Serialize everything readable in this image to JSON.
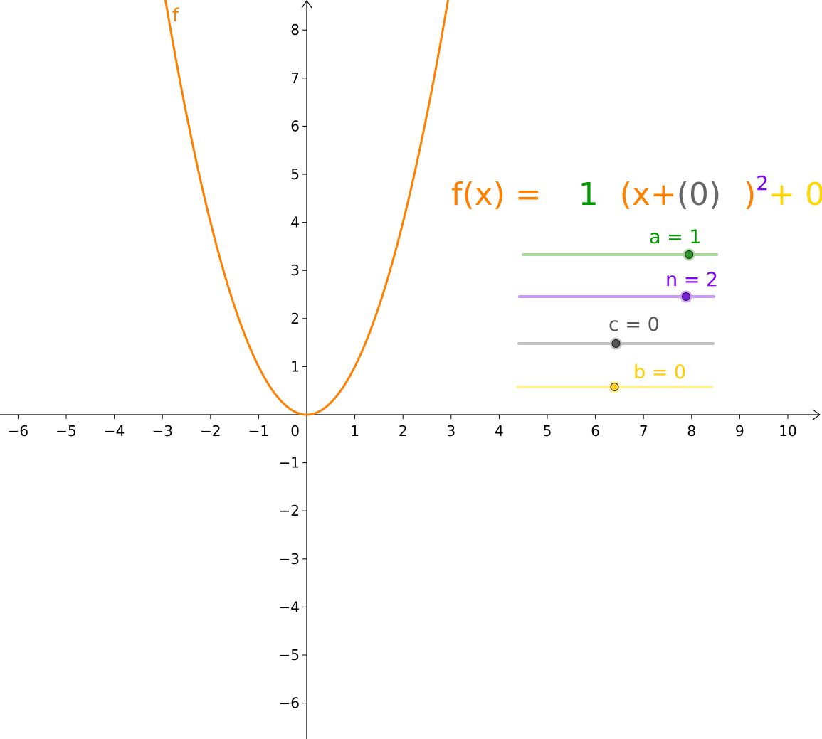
{
  "graph": {
    "x_ticks": [
      "−6",
      "−5",
      "−4",
      "−3",
      "−2",
      "−1",
      "1",
      "2",
      "3",
      "4",
      "5",
      "6",
      "7",
      "8",
      "9",
      "10"
    ],
    "y_ticks_pos": [
      "1",
      "2",
      "3",
      "4",
      "5",
      "6",
      "7",
      "8"
    ],
    "y_ticks_neg": [
      "−1",
      "−2",
      "−3",
      "−4",
      "−5",
      "−6"
    ],
    "origin_label": "0",
    "x_range": [
      -6.4,
      10.6
    ],
    "y_range": [
      -6.7,
      8.6
    ],
    "curve": {
      "name": "f",
      "label": "f",
      "expression": "a(x+c)^n+b",
      "color": "#ff8000"
    }
  },
  "formula": {
    "lhs": "f(x) =",
    "a_value": "1",
    "open_paren": "(",
    "x_plus": "x+",
    "c_part": "(0)",
    "close_paren": ")",
    "exponent": "2",
    "plus_b": "+ 0",
    "colors": {
      "f": "#ff8000",
      "a": "#009900",
      "c": "#666666",
      "n": "#8000ff",
      "b": "#ffd700"
    }
  },
  "sliders": [
    {
      "id": "a",
      "label": "a = 1",
      "value": 1,
      "min": -5,
      "max": 2,
      "color": "#009900",
      "track": "#a8d898",
      "knob": "#2e9a2e"
    },
    {
      "id": "n",
      "label": "n = 2",
      "value": 2,
      "min": -10,
      "max": 4,
      "color": "#8000ff",
      "track": "#cc99ff",
      "knob": "#7a1fe0"
    },
    {
      "id": "c",
      "label": "c = 0",
      "value": 0,
      "min": -5,
      "max": 5,
      "color": "#555555",
      "track": "#c0c0c0",
      "knob": "#555555"
    },
    {
      "id": "b",
      "label": "b = 0",
      "value": 0,
      "min": -5,
      "max": 5,
      "color": "#ffcc00",
      "track": "#fff09a",
      "knob": "#ffd21f"
    }
  ]
}
